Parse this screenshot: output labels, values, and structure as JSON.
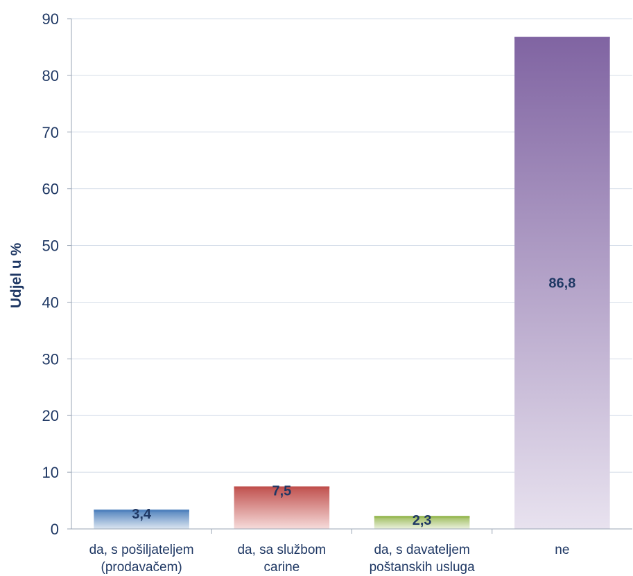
{
  "chart_data": {
    "type": "bar",
    "title": "",
    "xlabel": "",
    "ylabel": "Udjel u %",
    "ylim": [
      0,
      90
    ],
    "yticks": [
      0,
      10,
      20,
      30,
      40,
      50,
      60,
      70,
      80,
      90
    ],
    "grid": true,
    "categories": [
      [
        "da, s pošiljateljem",
        "(prodavačem)"
      ],
      [
        "da, sa službom",
        "carine"
      ],
      [
        "da, s davateljem",
        "poštanskih usluga"
      ],
      [
        "ne"
      ]
    ],
    "values": [
      3.4,
      7.5,
      2.3,
      86.8
    ],
    "data_labels": [
      "3,4",
      "7,5",
      "2,3",
      "86,8"
    ],
    "colors": [
      {
        "top": "#4f81bd",
        "bottom": "#dce6f1"
      },
      {
        "top": "#c0504d",
        "bottom": "#f6dcdb"
      },
      {
        "top": "#9bbb59",
        "bottom": "#ebf1de"
      },
      {
        "top": "#8064a2",
        "bottom": "#e8e2ef"
      }
    ]
  }
}
